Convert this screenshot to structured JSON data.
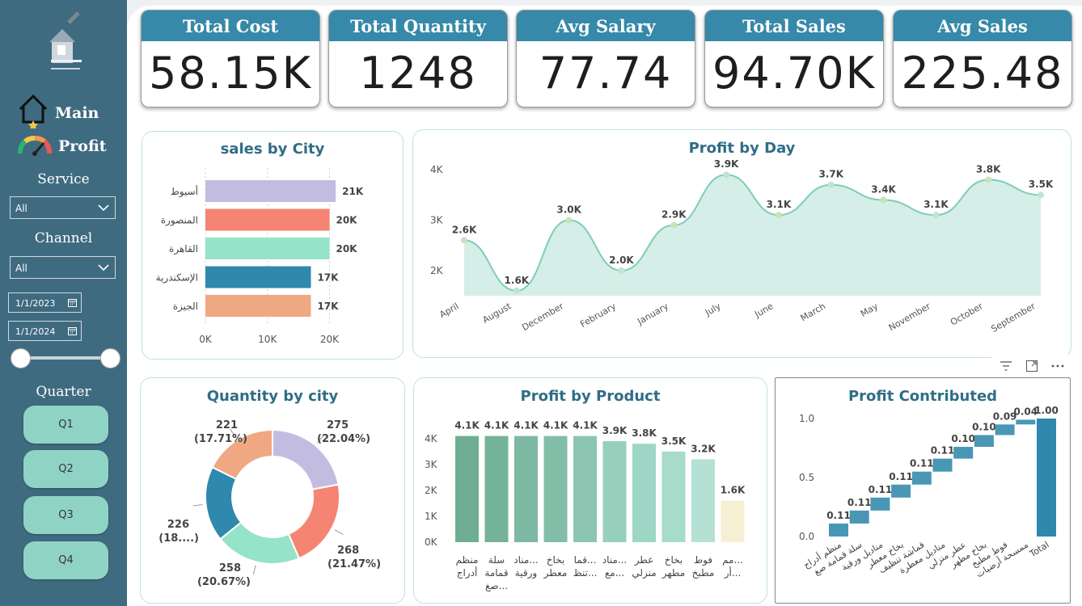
{
  "sidebar": {
    "nav": [
      {
        "label": "Main",
        "icon": "house-icon"
      },
      {
        "label": "Profit",
        "icon": "gauge-icon"
      }
    ],
    "service": {
      "title": "Service",
      "value": "All"
    },
    "channel": {
      "title": "Channel",
      "value": "All"
    },
    "dates": {
      "start": "1/1/2023",
      "end": "1/1/2024"
    },
    "quarter": {
      "title": "Quarter",
      "items": [
        "Q1",
        "Q2",
        "Q3",
        "Q4"
      ]
    }
  },
  "kpis": [
    {
      "title": "Total Cost",
      "value": "58.15K"
    },
    {
      "title": "Total Quantity",
      "value": "1248"
    },
    {
      "title": "Avg Salary",
      "value": "77.74"
    },
    {
      "title": "Total Sales",
      "value": "94.70K"
    },
    {
      "title": "Avg Sales",
      "value": "225.48"
    }
  ],
  "colors": {
    "sidebar": "#3f6b80",
    "kpi_header": "#3689a8",
    "title": "#2f6d86",
    "line": "#7dcdb8",
    "area": "#d5eee7",
    "waterfall": "#4a97b5",
    "total": "#2f88ad"
  },
  "chart_data": [
    {
      "id": "sales_by_city",
      "type": "bar",
      "orientation": "horizontal",
      "title": "sales by City",
      "categories": [
        "أسيوط",
        "المنصورة",
        "القاهرة",
        "الإسكندرية",
        "الجيزة"
      ],
      "values": [
        21000,
        20000,
        20000,
        17000,
        17000
      ],
      "labels": [
        "21K",
        "20K",
        "20K",
        "17K",
        "17K"
      ],
      "colors": [
        "#c2bde0",
        "#f58473",
        "#95e3c9",
        "#2f88ad",
        "#f0a882"
      ],
      "xticks": [
        "0K",
        "10K",
        "20K"
      ],
      "xlim": [
        0,
        21500
      ]
    },
    {
      "id": "profit_by_day",
      "type": "area",
      "title": "Profit by Day",
      "x": [
        "April",
        "August",
        "December",
        "February",
        "January",
        "July",
        "June",
        "March",
        "May",
        "November",
        "October",
        "September"
      ],
      "y": [
        2600,
        1600,
        3000,
        2000,
        2900,
        3900,
        3100,
        3700,
        3400,
        3100,
        3800,
        3500
      ],
      "labels": [
        "2.6K",
        "1.6K",
        "3.0K",
        "2.0K",
        "2.9K",
        "3.9K",
        "3.1K",
        "3.7K",
        "3.4K",
        "3.1K",
        "3.8K",
        "3.5K"
      ],
      "yticks": [
        "2K",
        "3K",
        "4K"
      ],
      "ylim": [
        1500,
        4000
      ]
    },
    {
      "id": "quantity_by_city",
      "type": "pie",
      "donut": true,
      "title": "Quantity by city",
      "values": [
        275,
        268,
        258,
        226,
        221
      ],
      "labels": [
        "275",
        "268",
        "258",
        "226",
        "221"
      ],
      "percents": [
        "(22.04%)",
        "(21.47%)",
        "(20.67%)",
        "(18....)",
        "(17.71%)"
      ],
      "colors": [
        "#c2bde0",
        "#f58473",
        "#95e3c9",
        "#2f88ad",
        "#f0a882"
      ]
    },
    {
      "id": "profit_by_product",
      "type": "bar",
      "title": "Profit by Product",
      "categories": [
        "منظم أدراج",
        "سلة قمامة صغ...",
        "مناد... ورقية",
        "بخاخ معطر",
        "قما... تنظ...",
        "مناد... مع...",
        "عطر منزلي",
        "بخاخ مطهر",
        "فوط مطبخ",
        "مم... أر..."
      ],
      "values": [
        4100,
        4100,
        4100,
        4100,
        4100,
        3900,
        3800,
        3500,
        3200,
        1600
      ],
      "labels": [
        "4.1K",
        "4.1K",
        "4.1K",
        "4.1K",
        "4.1K",
        "3.9K",
        "3.8K",
        "3.5K",
        "3.2K",
        "1.6K"
      ],
      "colors": [
        "#6fae94",
        "#74b29a",
        "#7cb8a2",
        "#82bda8",
        "#8cc5b1",
        "#97cfbd",
        "#9dd6c4",
        "#a7dccb",
        "#b5e0d4",
        "#f7efd3"
      ],
      "yticks": [
        "0K",
        "1K",
        "2K",
        "3K",
        "4K"
      ],
      "ylim": [
        0,
        4400
      ]
    },
    {
      "id": "profit_contributed",
      "type": "bar",
      "waterfall": true,
      "title": "Profit Contributed",
      "categories": [
        "منظم أدراج",
        "سلة قمامة صغ",
        "مناديل ورقية",
        "بخاخ معطر",
        "قماشة تنظيف",
        "مناديل معطرة",
        "عطر منزلي",
        "بخاخ مطهر",
        "فوط مطبخ",
        "ممسحة أرضيات",
        "Total"
      ],
      "values": [
        0.11,
        0.11,
        0.11,
        0.11,
        0.11,
        0.11,
        0.1,
        0.1,
        0.09,
        0.04,
        1.0
      ],
      "labels": [
        "0.11",
        "0.11",
        "0.11",
        "0.11",
        "0.11",
        "0.11",
        "0.10",
        "0.10",
        "0.09",
        "0.04",
        "1.00"
      ],
      "yticks": [
        "0.0",
        "0.5",
        "1.0"
      ],
      "ylim": [
        0,
        1
      ]
    }
  ]
}
